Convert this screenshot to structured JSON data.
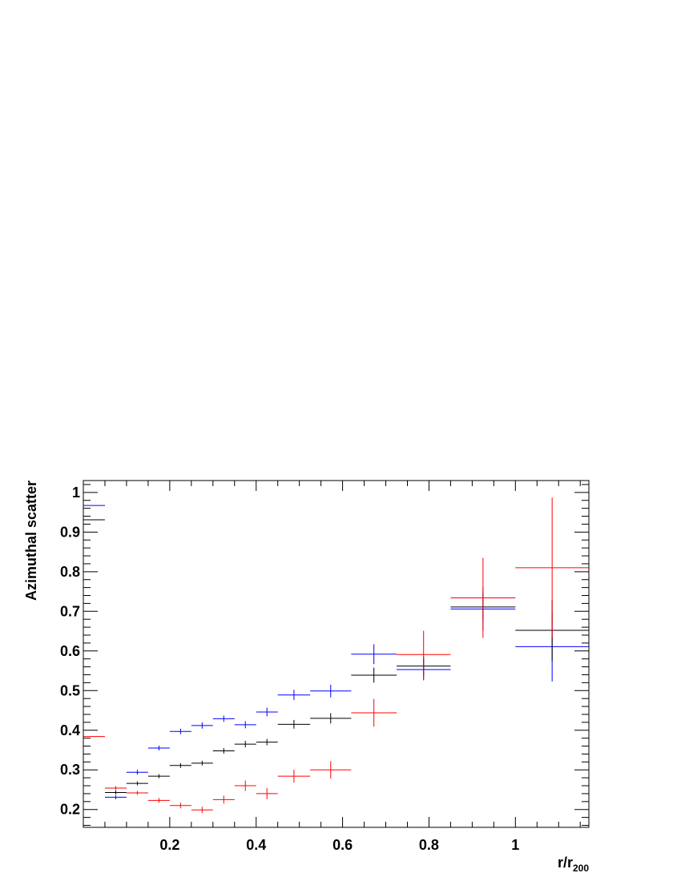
{
  "chart_data": {
    "type": "scatter",
    "title": "",
    "xlabel": "r/r",
    "xlabel_subscript": "200",
    "ylabel": "Azimuthal scatter",
    "xlim": [
      0.0,
      1.17
    ],
    "ylim": [
      0.155,
      1.03
    ],
    "x_ticks": [
      {
        "value": 0.2,
        "label": "0.2"
      },
      {
        "value": 0.4,
        "label": "0.4"
      },
      {
        "value": 0.6,
        "label": "0.6"
      },
      {
        "value": 0.8,
        "label": "0.8"
      },
      {
        "value": 1.0,
        "label": "1"
      }
    ],
    "y_ticks": [
      {
        "value": 0.2,
        "label": "0.2"
      },
      {
        "value": 0.3,
        "label": "0.3"
      },
      {
        "value": 0.4,
        "label": "0.4"
      },
      {
        "value": 0.5,
        "label": "0.5"
      },
      {
        "value": 0.6,
        "label": "0.6"
      },
      {
        "value": 0.7,
        "label": "0.7"
      },
      {
        "value": 0.8,
        "label": "0.8"
      },
      {
        "value": 0.9,
        "label": "0.9"
      },
      {
        "value": 1.0,
        "label": "1"
      }
    ],
    "grid": false,
    "legend": "none",
    "series": [
      {
        "color": "#0000ff",
        "points": [
          {
            "x": 0.025,
            "xerr": 0.025,
            "y": 0.967,
            "yerr": 0.0
          },
          {
            "x": 0.075,
            "xerr": 0.025,
            "y": 0.231,
            "yerr": 0.005
          },
          {
            "x": 0.125,
            "xerr": 0.025,
            "y": 0.294,
            "yerr": 0.006
          },
          {
            "x": 0.175,
            "xerr": 0.025,
            "y": 0.355,
            "yerr": 0.006
          },
          {
            "x": 0.225,
            "xerr": 0.025,
            "y": 0.397,
            "yerr": 0.007
          },
          {
            "x": 0.275,
            "xerr": 0.025,
            "y": 0.412,
            "yerr": 0.008
          },
          {
            "x": 0.325,
            "xerr": 0.025,
            "y": 0.429,
            "yerr": 0.008
          },
          {
            "x": 0.375,
            "xerr": 0.025,
            "y": 0.414,
            "yerr": 0.009
          },
          {
            "x": 0.425,
            "xerr": 0.025,
            "y": 0.446,
            "yerr": 0.011
          },
          {
            "x": 0.4875,
            "xerr": 0.0375,
            "y": 0.489,
            "yerr": 0.013
          },
          {
            "x": 0.5725,
            "xerr": 0.0475,
            "y": 0.499,
            "yerr": 0.016
          },
          {
            "x": 0.6725,
            "xerr": 0.0525,
            "y": 0.592,
            "yerr": 0.025
          },
          {
            "x": 0.7875,
            "xerr": 0.0625,
            "y": 0.553,
            "yerr": 0.027
          },
          {
            "x": 0.925,
            "xerr": 0.075,
            "y": 0.706,
            "yerr": 0.055
          },
          {
            "x": 1.085,
            "xerr": 0.085,
            "y": 0.611,
            "yerr": 0.088
          }
        ]
      },
      {
        "color": "#000000",
        "points": [
          {
            "x": 0.025,
            "xerr": 0.025,
            "y": 0.931,
            "yerr": 0.0
          },
          {
            "x": 0.075,
            "xerr": 0.025,
            "y": 0.243,
            "yerr": 0.005
          },
          {
            "x": 0.125,
            "xerr": 0.025,
            "y": 0.266,
            "yerr": 0.005
          },
          {
            "x": 0.175,
            "xerr": 0.025,
            "y": 0.284,
            "yerr": 0.005
          },
          {
            "x": 0.225,
            "xerr": 0.025,
            "y": 0.311,
            "yerr": 0.006
          },
          {
            "x": 0.275,
            "xerr": 0.025,
            "y": 0.317,
            "yerr": 0.006
          },
          {
            "x": 0.325,
            "xerr": 0.025,
            "y": 0.348,
            "yerr": 0.007
          },
          {
            "x": 0.375,
            "xerr": 0.025,
            "y": 0.365,
            "yerr": 0.008
          },
          {
            "x": 0.425,
            "xerr": 0.025,
            "y": 0.37,
            "yerr": 0.008
          },
          {
            "x": 0.4875,
            "xerr": 0.0375,
            "y": 0.415,
            "yerr": 0.011
          },
          {
            "x": 0.5725,
            "xerr": 0.0475,
            "y": 0.43,
            "yerr": 0.013
          },
          {
            "x": 0.6725,
            "xerr": 0.0525,
            "y": 0.539,
            "yerr": 0.019
          },
          {
            "x": 0.7875,
            "xerr": 0.0625,
            "y": 0.562,
            "yerr": 0.024
          },
          {
            "x": 0.925,
            "xerr": 0.075,
            "y": 0.711,
            "yerr": 0.035
          },
          {
            "x": 1.085,
            "xerr": 0.085,
            "y": 0.652,
            "yerr": 0.077
          }
        ]
      },
      {
        "color": "#ff0000",
        "points": [
          {
            "x": 0.025,
            "xerr": 0.025,
            "y": 0.384,
            "yerr": 0.0
          },
          {
            "x": 0.075,
            "xerr": 0.025,
            "y": 0.254,
            "yerr": 0.005
          },
          {
            "x": 0.125,
            "xerr": 0.025,
            "y": 0.242,
            "yerr": 0.005
          },
          {
            "x": 0.175,
            "xerr": 0.025,
            "y": 0.223,
            "yerr": 0.006
          },
          {
            "x": 0.225,
            "xerr": 0.025,
            "y": 0.21,
            "yerr": 0.007
          },
          {
            "x": 0.275,
            "xerr": 0.025,
            "y": 0.199,
            "yerr": 0.008
          },
          {
            "x": 0.325,
            "xerr": 0.025,
            "y": 0.225,
            "yerr": 0.01
          },
          {
            "x": 0.375,
            "xerr": 0.025,
            "y": 0.26,
            "yerr": 0.013
          },
          {
            "x": 0.425,
            "xerr": 0.025,
            "y": 0.24,
            "yerr": 0.014
          },
          {
            "x": 0.4875,
            "xerr": 0.0375,
            "y": 0.284,
            "yerr": 0.016
          },
          {
            "x": 0.5725,
            "xerr": 0.0475,
            "y": 0.3,
            "yerr": 0.022
          },
          {
            "x": 0.6725,
            "xerr": 0.0525,
            "y": 0.444,
            "yerr": 0.035
          },
          {
            "x": 0.7875,
            "xerr": 0.0625,
            "y": 0.591,
            "yerr": 0.06
          },
          {
            "x": 0.925,
            "xerr": 0.075,
            "y": 0.734,
            "yerr": 0.101
          },
          {
            "x": 1.085,
            "xerr": 0.085,
            "y": 0.81,
            "yerr": 0.177
          }
        ]
      }
    ]
  }
}
